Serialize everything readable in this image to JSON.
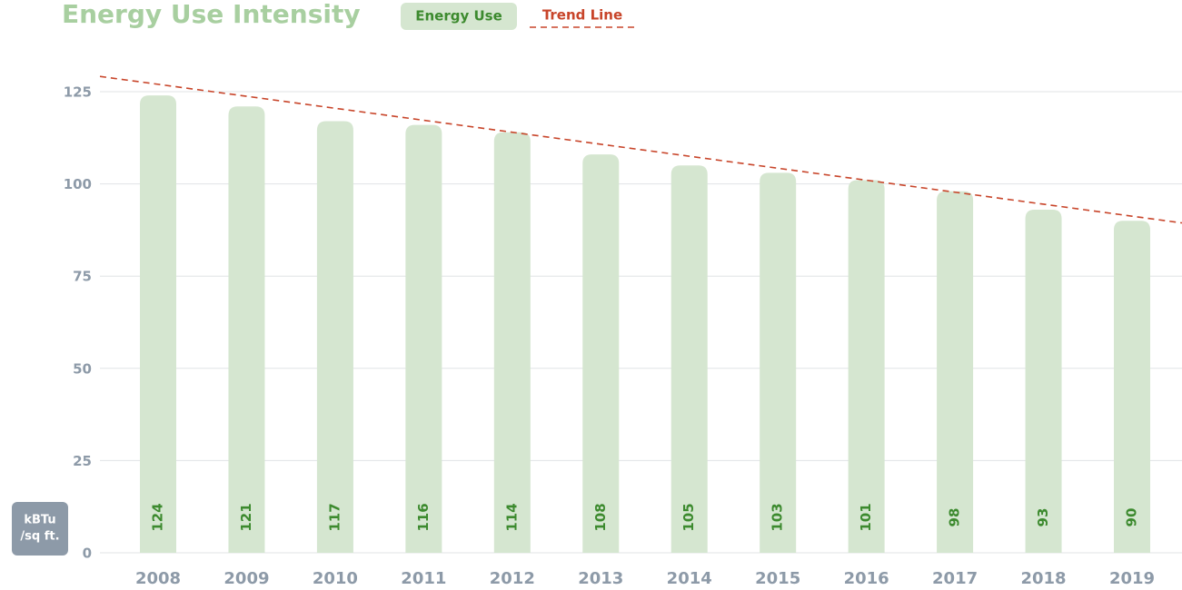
{
  "chart_data": {
    "type": "bar",
    "title": "Energy Use Intensity",
    "y_label": [
      "kBTu",
      "/sq ft."
    ],
    "categories": [
      "2008",
      "2009",
      "2010",
      "2011",
      "2012",
      "2013",
      "2014",
      "2015",
      "2016",
      "2017",
      "2018",
      "2019"
    ],
    "series": [
      {
        "name": "Energy Use",
        "color": "#d5e6d0",
        "values": [
          124,
          121,
          117,
          116,
          114,
          108,
          105,
          103,
          101,
          98,
          93,
          90
        ]
      },
      {
        "name": "Trend Line",
        "color": "#c8452a",
        "type": "line",
        "values": [
          127,
          123.75,
          120.5,
          117.25,
          114,
          110.75,
          107.5,
          104.25,
          101,
          97.75,
          94.5,
          91.25
        ]
      }
    ],
    "ylim": [
      0,
      125
    ],
    "yticks": [
      0,
      25,
      50,
      75,
      100,
      125
    ],
    "grid": true
  }
}
